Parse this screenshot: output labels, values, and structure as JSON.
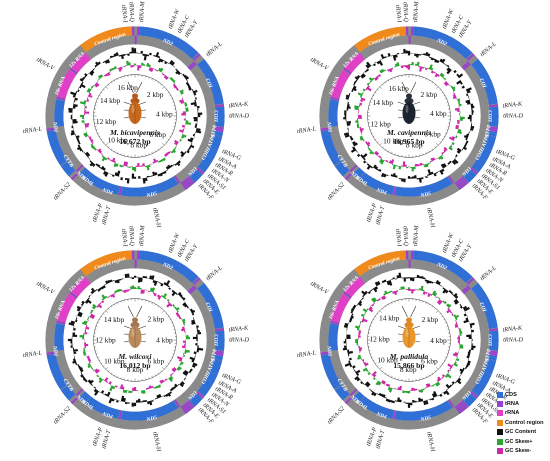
{
  "maps": [
    {
      "species": "M. bicavipennis",
      "size": "16,672 bp",
      "beetle": "orange",
      "kbp_labels": [
        "2 kbp",
        "4 kbp",
        "6 kbp",
        "8 kbp",
        "10 kbp",
        "12 kbp",
        "14 kbp",
        "16 kbp"
      ],
      "gene_labels": [
        "tRNA-I",
        "tRNA-Q",
        "tRNA-M",
        "tRNA-W",
        "tRNA-C",
        "tRNA-Y",
        "tRNA-L",
        "tRNA-K",
        "tRNA-D",
        "tRNA-G",
        "tRNA-A",
        "tRNA-R",
        "tRNA-N",
        "tRNA-S1",
        "tRNA-E",
        "tRNA-F",
        "tRNA-H",
        "tRNA-T",
        "tRNA-P",
        "tRNA-S2",
        "tRNA-L",
        "tRNA-V",
        "ND2",
        "COI",
        "COII",
        "ATP8",
        "ATP6",
        "COIII",
        "ND3",
        "ND5",
        "ND4",
        "ND4L",
        "ND6",
        "CYTB",
        "ND1",
        "16s RNA",
        "12s RNA",
        "Control region"
      ]
    },
    {
      "species": "M. cavipennis",
      "size": "16,965 bp",
      "beetle": "black",
      "kbp_labels": [
        "2 kbp",
        "4 kbp",
        "6 kbp",
        "8 kbp",
        "10 kbp",
        "12 kbp",
        "14 kbp",
        "16 kbp"
      ],
      "gene_labels": [
        "tRNA-I",
        "tRNA-Q",
        "tRNA-M",
        "tRNA-W",
        "tRNA-C",
        "tRNA-Y",
        "tRNA-L",
        "tRNA-K",
        "tRNA-D",
        "tRNA-G",
        "tRNA-A",
        "tRNA-R",
        "tRNA-N",
        "tRNA-S1",
        "tRNA-E",
        "tRNA-F",
        "tRNA-H",
        "tRNA-T",
        "tRNA-P",
        "tRNA-S2",
        "tRNA-L",
        "tRNA-V",
        "ND2",
        "COI",
        "COII",
        "ATP8",
        "ATP6",
        "COIII",
        "ND3",
        "ND5",
        "ND4",
        "ND4L",
        "ND6",
        "CYTB",
        "ND1",
        "16s RNA",
        "12s RNA",
        "Control region"
      ]
    },
    {
      "species": "M. wilcoxi",
      "size": "16,012 bp",
      "beetle": "pale",
      "kbp_labels": [
        "2 kbp",
        "4 kbp",
        "6 kbp",
        "8 kbp",
        "10 kbp",
        "12 kbp",
        "14 kbp"
      ],
      "gene_labels": [
        "tRNA-I",
        "tRNA-Q",
        "tRNA-M",
        "tRNA-W",
        "tRNA-C",
        "tRNA-Y",
        "tRNA-L",
        "tRNA-K",
        "tRNA-D",
        "tRNA-G",
        "tRNA-A",
        "tRNA-R",
        "tRNA-N",
        "tRNA-S1",
        "tRNA-E",
        "tRNA-F",
        "tRNA-H",
        "tRNA-T",
        "tRNA-P",
        "tRNA-S2",
        "tRNA-L",
        "tRNA-V",
        "ND2",
        "COI",
        "COII",
        "ATP8",
        "ATP6",
        "COIII",
        "ND3",
        "ND5",
        "ND4",
        "ND4L",
        "ND6",
        "CYTB",
        "ND1",
        "16s RNA",
        "12s RNA",
        "Control region"
      ]
    },
    {
      "species": "M. pallidula",
      "size": "15,866 bp",
      "beetle": "yellow",
      "kbp_labels": [
        "2 kbp",
        "4 kbp",
        "6 kbp",
        "8 kbp",
        "10 kbp",
        "12 kbp",
        "14 kbp"
      ],
      "gene_labels": [
        "tRNA-I",
        "tRNA-Q",
        "tRNA-M",
        "tRNA-W",
        "tRNA-C",
        "tRNA-Y",
        "tRNA-L",
        "tRNA-K",
        "tRNA-D",
        "tRNA-G",
        "tRNA-A",
        "tRNA-R",
        "tRNA-N",
        "tRNA-S1",
        "tRNA-E",
        "tRNA-F",
        "tRNA-H",
        "tRNA-T",
        "tRNA-P",
        "tRNA-S2",
        "tRNA-L",
        "tRNA-V",
        "ND2",
        "COI",
        "COII",
        "ATP8",
        "ATP6",
        "COIII",
        "ND3",
        "ND5",
        "ND4",
        "ND4L",
        "ND6",
        "CYTB",
        "ND1",
        "16s RNA",
        "12s RNA",
        "Control region"
      ]
    }
  ],
  "legend": [
    {
      "label": "CDS",
      "color": "#2f6fd6"
    },
    {
      "label": "tRNA",
      "color": "#9b3fd0"
    },
    {
      "label": "rRNA",
      "color": "#e040c8"
    },
    {
      "label": "Control region",
      "color": "#f08a1c"
    },
    {
      "label": "GC Content",
      "color": "#111111"
    },
    {
      "label": "GC Skew+",
      "color": "#2aa530"
    },
    {
      "label": "GC Skew-",
      "color": "#cc2aa8"
    }
  ],
  "colors": {
    "cds": "#2f6fd6",
    "trna": "#9b3fd0",
    "rrna": "#e040c8",
    "control": "#f08a1c",
    "gc": "#111111",
    "skew_pos": "#2aa530",
    "skew_neg": "#cc2aa8",
    "ring": "#8a8a8a"
  }
}
